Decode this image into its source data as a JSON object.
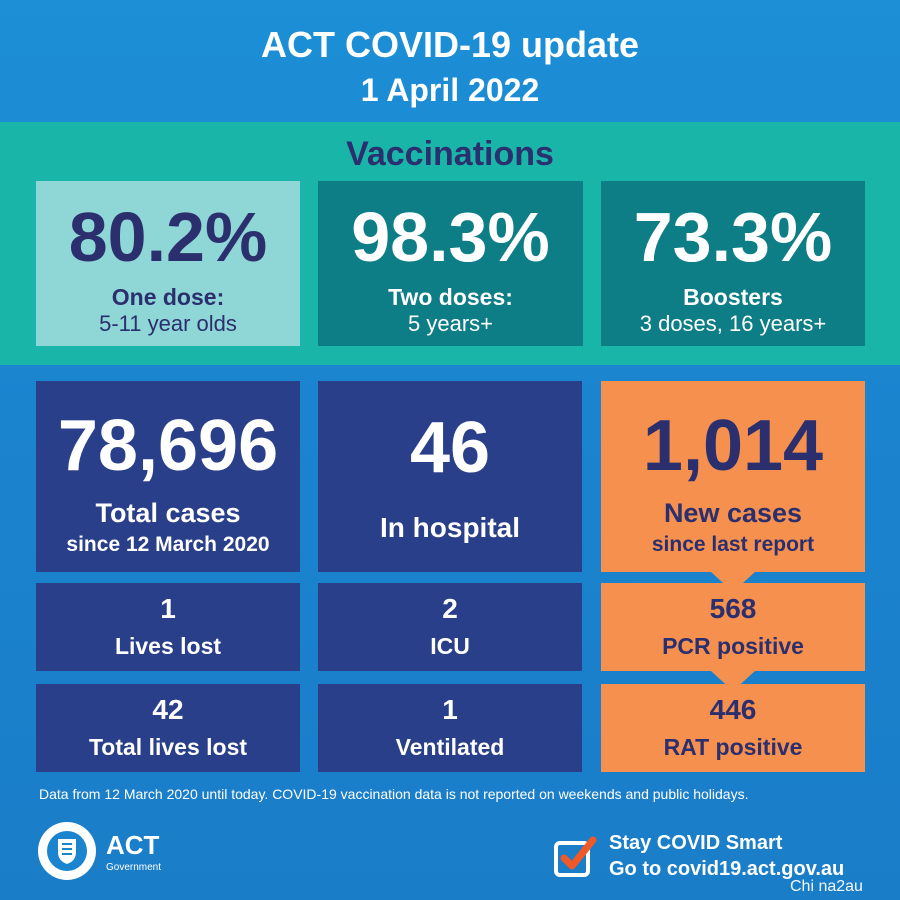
{
  "header": {
    "title": "ACT COVID-19 update",
    "date": "1 April 2022"
  },
  "vaccinations": {
    "heading": "Vaccinations",
    "items": [
      {
        "value": "80.2%",
        "label": "One dose:",
        "sub": "5-11 year olds"
      },
      {
        "value": "98.3%",
        "label": "Two doses:",
        "sub": "5 years+"
      },
      {
        "value": "73.3%",
        "label": "Boosters",
        "sub": "3 doses, 16 years+"
      }
    ]
  },
  "cases": {
    "total": {
      "value": "78,696",
      "label": "Total cases",
      "sub": "since 12 March 2020"
    },
    "hospital": {
      "value": "46",
      "label": "In hospital"
    },
    "new": {
      "value": "1,014",
      "label": "New cases",
      "sub": "since last report"
    },
    "lives_lost": {
      "value": "1",
      "label": "Lives lost"
    },
    "icu": {
      "value": "2",
      "label": "ICU"
    },
    "pcr": {
      "value": "568",
      "label": "PCR positive"
    },
    "total_lives_lost": {
      "value": "42",
      "label": "Total lives lost"
    },
    "ventilated": {
      "value": "1",
      "label": "Ventilated"
    },
    "rat": {
      "value": "446",
      "label": "RAT positive"
    }
  },
  "footnote": "Data from 12 March 2020 until today.  COVID-19 vaccination data is not reported on weekends and public holidays.",
  "logo": {
    "name": "ACT",
    "sub": "Government"
  },
  "stay_smart": {
    "line1": "Stay COVID Smart",
    "line2": "Go to covid19.act.gov.au",
    "icon": "checkmark-icon"
  },
  "watermark": "Chi na2au",
  "colors": {
    "navy": "#2a3f8a",
    "orange": "#f5904e",
    "teal": "#19b5a8",
    "dark_teal": "#0d7d86",
    "light_teal": "#8fd6d6",
    "text_navy": "#2b2f6e"
  }
}
